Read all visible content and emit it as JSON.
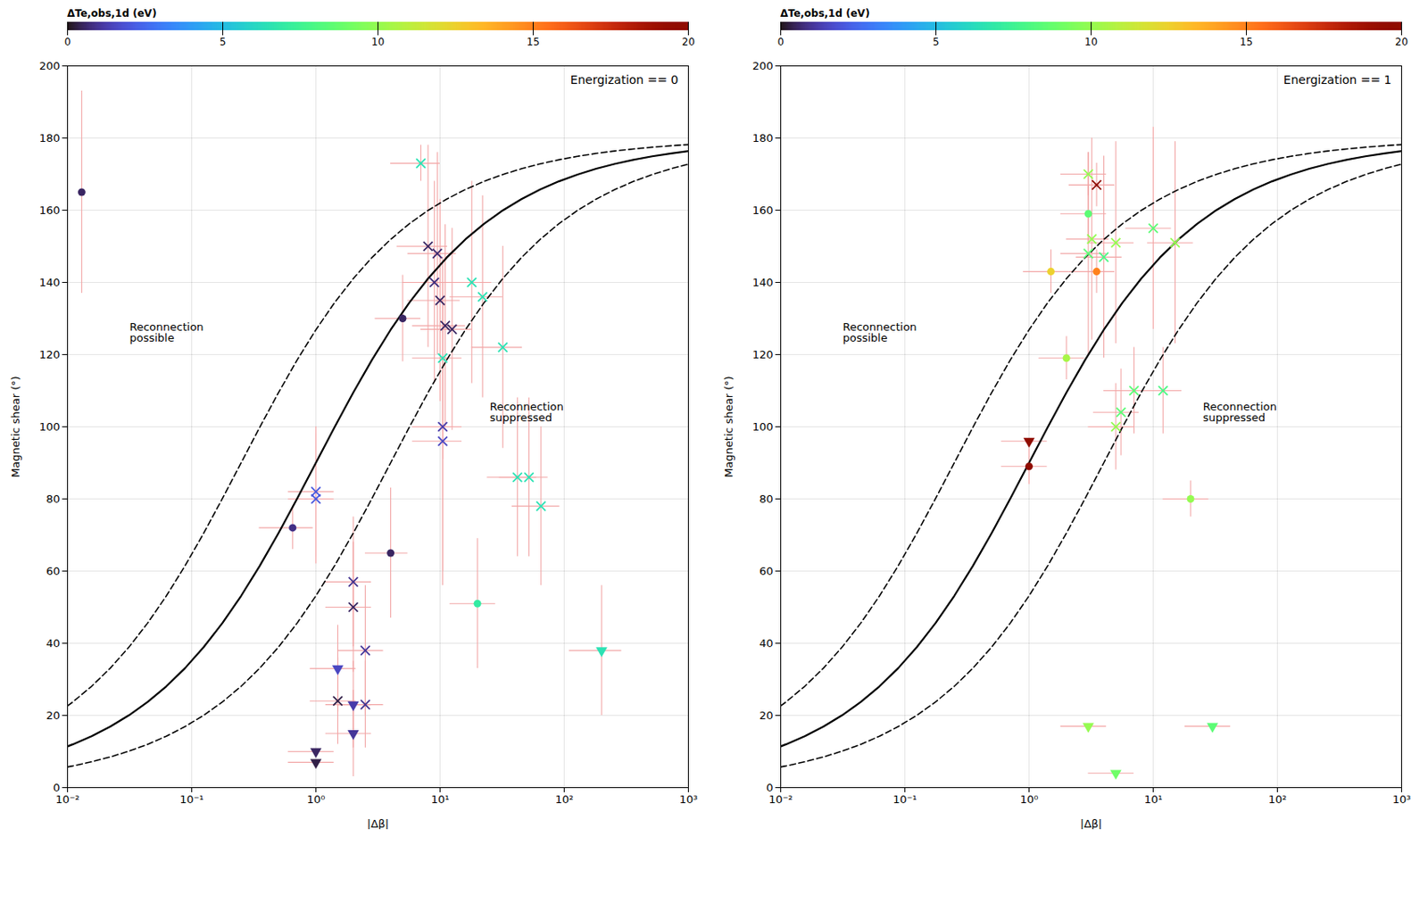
{
  "chart_data": [
    {
      "type": "scatter",
      "title": "Energization == 0",
      "x_label": "|Δβ|",
      "y_label": "Magnetic shear (°)",
      "log": "x",
      "grid": true,
      "xlim": [
        0.01,
        1000
      ],
      "xticks": [
        {
          "value": 0.01,
          "label": "10⁻²"
        },
        {
          "value": 0.1,
          "label": "10⁻¹"
        },
        {
          "value": 1,
          "label": "10⁰"
        },
        {
          "value": 10,
          "label": "10¹"
        },
        {
          "value": 100,
          "label": "10²"
        },
        {
          "value": 1000,
          "label": "10³"
        }
      ],
      "ylim": [
        0,
        200
      ],
      "yticks": [
        0,
        20,
        40,
        60,
        80,
        100,
        120,
        140,
        160,
        180,
        200
      ],
      "colorbar_label": "ΔTe,obs,1d (eV)",
      "colorbar_lim": [
        0,
        20
      ],
      "colorbar_ticks": [
        0,
        5,
        10,
        15,
        20
      ],
      "annotations": [
        "Reconnection\npossible",
        "Reconnection\nsuppressed"
      ],
      "series": [
        {
          "type": "line",
          "color": "#000000",
          "line_style": "dashed",
          "x": [
            0.01,
            0.0110485,
            0.015625,
            0.0220971,
            0.03125,
            0.0441942,
            0.0625,
            0.0883883,
            0.125,
            0.176777,
            0.25,
            0.353553,
            0.5,
            0.707107,
            1,
            1.41421,
            2,
            2.82843,
            4,
            5.65685,
            8,
            11.3137,
            16,
            22.6274,
            32,
            45.2548,
            64,
            90.5097,
            128,
            181.019,
            256,
            362.039,
            512,
            724.077,
            1000
          ],
          "values": [
            22.62,
            23.747,
            28.072,
            33.115,
            38.942,
            45.612,
            53.13,
            61.476,
            70.529,
            80.121,
            90,
            99.879,
            109.471,
            118.524,
            126.87,
            134.388,
            141.058,
            146.885,
            151.928,
            156.253,
            159.95,
            163.089,
            165.75,
            167.999,
            169.898,
            171.499,
            172.847,
            173.983,
            174.939,
            175.743,
            176.42,
            176.989,
            177.468,
            177.871,
            178.188
          ]
        },
        {
          "type": "line",
          "color": "#000000",
          "line_style": "solid",
          "x": [
            0.01,
            0.0110485,
            0.015625,
            0.0220971,
            0.03125,
            0.0441942,
            0.0625,
            0.0883883,
            0.125,
            0.176777,
            0.25,
            0.353553,
            0.5,
            0.707107,
            1,
            1.41421,
            2,
            2.82843,
            4,
            5.65685,
            8,
            11.3137,
            16,
            22.6274,
            32,
            45.2548,
            64,
            90.5097,
            128,
            181.019,
            256,
            362.039,
            512,
            724.077,
            1000
          ],
          "values": [
            11.421,
            12.001,
            14.25,
            16.911,
            20.05,
            23.747,
            28.072,
            33.115,
            38.942,
            45.612,
            53.13,
            61.476,
            70.529,
            80.121,
            90,
            99.879,
            109.471,
            118.524,
            126.87,
            134.388,
            141.058,
            146.885,
            151.928,
            156.253,
            159.95,
            163.089,
            165.75,
            167.999,
            169.898,
            171.499,
            172.847,
            173.983,
            174.939,
            175.743,
            176.377
          ]
        },
        {
          "type": "line",
          "color": "#000000",
          "line_style": "dashed",
          "x": [
            0.01,
            0.0110485,
            0.015625,
            0.0220971,
            0.03125,
            0.0441942,
            0.0625,
            0.0883883,
            0.125,
            0.176777,
            0.25,
            0.353553,
            0.5,
            0.707107,
            1,
            1.41421,
            2,
            2.82843,
            4,
            5.65685,
            8,
            11.3137,
            16,
            22.6274,
            32,
            45.2548,
            64,
            90.5097,
            128,
            181.019,
            256,
            362.039,
            512,
            724.077,
            1000
          ],
          "values": [
            5.725,
            6.017,
            7.153,
            8.501,
            10.102,
            12.001,
            14.25,
            16.911,
            20.05,
            23.747,
            28.072,
            33.115,
            38.942,
            45.612,
            53.13,
            61.476,
            70.529,
            80.121,
            90,
            99.879,
            109.471,
            118.524,
            126.87,
            134.388,
            141.058,
            146.885,
            151.928,
            156.253,
            159.95,
            163.089,
            165.75,
            167.999,
            169.898,
            171.499,
            172.762
          ]
        },
        {
          "type": "scatter",
          "marker": "circle",
          "x": [
            0.013,
            0.65,
            5.0,
            4.0,
            20.0
          ],
          "values": [
            165,
            72,
            130,
            65,
            51
          ],
          "xerr": [
            0.0,
            0.3,
            2.0,
            1.5,
            8.0
          ],
          "yerr": [
            28,
            6,
            12,
            18,
            18
          ],
          "dt": [
            0.5,
            0.8,
            0.5,
            0.5,
            7.0
          ]
        },
        {
          "type": "scatter",
          "marker": "x",
          "x": [
            7.0,
            8.0,
            9.0,
            9.5,
            10.0,
            10.5,
            10.5,
            10.5,
            11.0,
            12.5,
            18.0,
            22.0,
            32.0,
            42.0,
            52.0,
            65.0,
            1.0,
            1.0,
            2.0,
            2.0,
            2.5,
            1.5,
            2.5
          ],
          "values": [
            173,
            150,
            140,
            148,
            135,
            119,
            100,
            96,
            128,
            127,
            140,
            136,
            122,
            86,
            86,
            78,
            82,
            80,
            57,
            50,
            38,
            24,
            23
          ],
          "xerr": [
            3.0,
            3.5,
            4.0,
            4.0,
            4.5,
            4.5,
            4.5,
            4.5,
            5.0,
            5.5,
            8.0,
            10.0,
            14.0,
            18.0,
            22.0,
            27.0,
            0.4,
            0.4,
            0.8,
            0.8,
            1.0,
            0.6,
            1.0
          ],
          "yerr": [
            5,
            28,
            28,
            28,
            28,
            28,
            40,
            40,
            28,
            28,
            28,
            28,
            28,
            22,
            22,
            22,
            18,
            18,
            18,
            18,
            18,
            12,
            12
          ],
          "dt": [
            6.5,
            0.5,
            0.7,
            0.6,
            0.5,
            6.5,
            1.2,
            1.5,
            0.5,
            0.5,
            6.5,
            6.5,
            6.5,
            6.5,
            6.5,
            6.5,
            2.0,
            2.0,
            0.9,
            0.5,
            1.0,
            0.3,
            0.9
          ]
        },
        {
          "type": "scatter",
          "marker": "triangle_down",
          "x": [
            1.5,
            2.0,
            2.0,
            1.0,
            1.0,
            200.0
          ],
          "values": [
            33,
            23,
            15,
            7,
            10,
            38
          ],
          "xerr": [
            0.6,
            0.8,
            0.8,
            0.4,
            0.4,
            90.0
          ],
          "yerr": [
            12,
            12,
            12,
            0,
            0,
            18
          ],
          "dt": [
            1.5,
            1.2,
            1.0,
            0.3,
            0.5,
            6.5
          ]
        }
      ]
    },
    {
      "type": "scatter",
      "title": "Energization == 1",
      "x_label": "|Δβ|",
      "y_label": "Magnetic shear (°)",
      "log": "x",
      "grid": true,
      "xlim": [
        0.01,
        1000
      ],
      "xticks": [
        {
          "value": 0.01,
          "label": "10⁻²"
        },
        {
          "value": 0.1,
          "label": "10⁻¹"
        },
        {
          "value": 1,
          "label": "10⁰"
        },
        {
          "value": 10,
          "label": "10¹"
        },
        {
          "value": 100,
          "label": "10²"
        },
        {
          "value": 1000,
          "label": "10³"
        }
      ],
      "ylim": [
        0,
        200
      ],
      "yticks": [
        0,
        20,
        40,
        60,
        80,
        100,
        120,
        140,
        160,
        180,
        200
      ],
      "colorbar_label": "ΔTe,obs,1d (eV)",
      "colorbar_lim": [
        0,
        20
      ],
      "colorbar_ticks": [
        0,
        5,
        10,
        15,
        20
      ],
      "annotations": [
        "Reconnection\npossible",
        "Reconnection\nsuppressed"
      ],
      "series": [
        {
          "type": "line",
          "color": "#000000",
          "line_style": "dashed",
          "x": [
            0.01,
            0.0110485,
            0.015625,
            0.0220971,
            0.03125,
            0.0441942,
            0.0625,
            0.0883883,
            0.125,
            0.176777,
            0.25,
            0.353553,
            0.5,
            0.707107,
            1,
            1.41421,
            2,
            2.82843,
            4,
            5.65685,
            8,
            11.3137,
            16,
            22.6274,
            32,
            45.2548,
            64,
            90.5097,
            128,
            181.019,
            256,
            362.039,
            512,
            724.077,
            1000
          ],
          "values": [
            22.62,
            23.747,
            28.072,
            33.115,
            38.942,
            45.612,
            53.13,
            61.476,
            70.529,
            80.121,
            90,
            99.879,
            109.471,
            118.524,
            126.87,
            134.388,
            141.058,
            146.885,
            151.928,
            156.253,
            159.95,
            163.089,
            165.75,
            167.999,
            169.898,
            171.499,
            172.847,
            173.983,
            174.939,
            175.743,
            176.42,
            176.989,
            177.468,
            177.871,
            178.188
          ]
        },
        {
          "type": "line",
          "color": "#000000",
          "line_style": "solid",
          "x": [
            0.01,
            0.0110485,
            0.015625,
            0.0220971,
            0.03125,
            0.0441942,
            0.0625,
            0.0883883,
            0.125,
            0.176777,
            0.25,
            0.353553,
            0.5,
            0.707107,
            1,
            1.41421,
            2,
            2.82843,
            4,
            5.65685,
            8,
            11.3137,
            16,
            22.6274,
            32,
            45.2548,
            64,
            90.5097,
            128,
            181.019,
            256,
            362.039,
            512,
            724.077,
            1000
          ],
          "values": [
            11.421,
            12.001,
            14.25,
            16.911,
            20.05,
            23.747,
            28.072,
            33.115,
            38.942,
            45.612,
            53.13,
            61.476,
            70.529,
            80.121,
            90,
            99.879,
            109.471,
            118.524,
            126.87,
            134.388,
            141.058,
            146.885,
            151.928,
            156.253,
            159.95,
            163.089,
            165.75,
            167.999,
            169.898,
            171.499,
            172.847,
            173.983,
            174.939,
            175.743,
            176.377
          ]
        },
        {
          "type": "line",
          "color": "#000000",
          "line_style": "dashed",
          "x": [
            0.01,
            0.0110485,
            0.015625,
            0.0220971,
            0.03125,
            0.0441942,
            0.0625,
            0.0883883,
            0.125,
            0.176777,
            0.25,
            0.353553,
            0.5,
            0.707107,
            1,
            1.41421,
            2,
            2.82843,
            4,
            5.65685,
            8,
            11.3137,
            16,
            22.6274,
            32,
            45.2548,
            64,
            90.5097,
            128,
            181.019,
            256,
            362.039,
            512,
            724.077,
            1000
          ],
          "values": [
            5.725,
            6.017,
            7.153,
            8.501,
            10.102,
            12.001,
            14.25,
            16.911,
            20.05,
            23.747,
            28.072,
            33.115,
            38.942,
            45.612,
            53.13,
            61.476,
            70.529,
            80.121,
            90,
            99.879,
            109.471,
            118.524,
            126.87,
            134.388,
            141.058,
            146.885,
            151.928,
            156.253,
            159.95,
            163.089,
            165.75,
            167.999,
            169.898,
            171.499,
            172.762
          ]
        },
        {
          "type": "scatter",
          "marker": "circle",
          "x": [
            3.0,
            1.5,
            3.5,
            2.0,
            1.0,
            20.0
          ],
          "values": [
            159,
            143,
            143,
            119,
            89,
            80
          ],
          "xerr": [
            1.2,
            0.6,
            1.4,
            0.8,
            0.4,
            8.0
          ],
          "yerr": [
            8,
            6,
            6,
            6,
            5,
            5
          ],
          "dt": [
            8.5,
            12.5,
            15.0,
            10.5,
            20.0,
            10.0
          ]
        },
        {
          "type": "scatter",
          "marker": "x",
          "x": [
            3.0,
            3.5,
            3.0,
            4.0,
            3.2,
            5.0,
            10.0,
            15.0,
            7.0,
            12.0,
            5.0,
            5.5
          ],
          "values": [
            170,
            167,
            148,
            147,
            152,
            151,
            155,
            151,
            110,
            110,
            100,
            104
          ],
          "xerr": [
            1.2,
            1.4,
            1.2,
            1.6,
            1.2,
            2.0,
            4.0,
            6.0,
            3.0,
            5.0,
            2.0,
            2.2
          ],
          "yerr": [
            6,
            6,
            28,
            28,
            28,
            28,
            28,
            28,
            12,
            12,
            12,
            12
          ],
          "dt": [
            10.0,
            20.0,
            8.5,
            8.0,
            10.0,
            10.0,
            8.5,
            10.0,
            8.5,
            8.0,
            10.0,
            8.5
          ]
        },
        {
          "type": "scatter",
          "marker": "triangle_down",
          "x": [
            1.0,
            3.0,
            5.0,
            30.0
          ],
          "values": [
            96,
            17,
            4,
            17
          ],
          "xerr": [
            0.4,
            1.2,
            2.0,
            12.0
          ],
          "yerr": [
            0,
            0,
            0,
            0
          ],
          "dt": [
            20.0,
            10.0,
            9.0,
            8.5
          ]
        }
      ]
    }
  ]
}
